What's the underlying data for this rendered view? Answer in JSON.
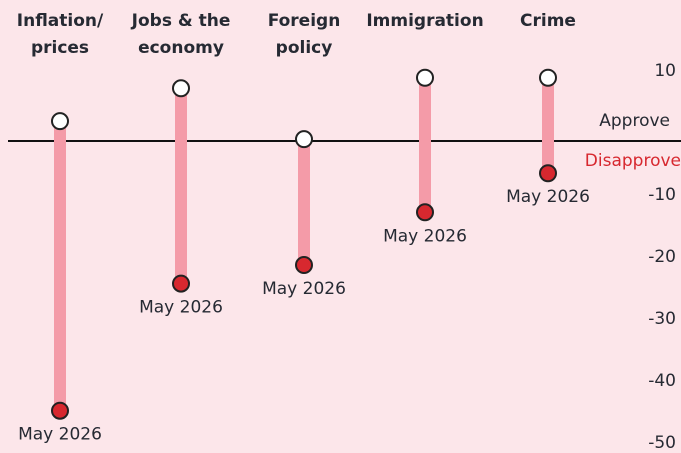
{
  "chart_data": {
    "type": "dumbbell",
    "categories": [
      [
        "Inflation/",
        "prices"
      ],
      [
        "Jobs & the",
        "economy"
      ],
      [
        "Foreign",
        "policy"
      ],
      [
        "Immigration"
      ],
      [
        "Crime"
      ]
    ],
    "series": [
      {
        "color": "#ffffff",
        "values": [
          3.2,
          8.5,
          0.3,
          10.2,
          10.2
        ]
      },
      {
        "name": "May 2026",
        "color": "#d7282f",
        "values": [
          -43.5,
          -23,
          -20,
          -11.5,
          -5.2
        ]
      }
    ],
    "bar_color": "#f49ba8",
    "ylim": [
      -50,
      12
    ],
    "yticks": [
      10,
      -10,
      -20,
      -30,
      -40,
      -50
    ],
    "annotations": [
      {
        "text": "Approve",
        "color": "#262a33"
      },
      {
        "text": "Disapprove",
        "color": "#d7282f"
      }
    ]
  }
}
